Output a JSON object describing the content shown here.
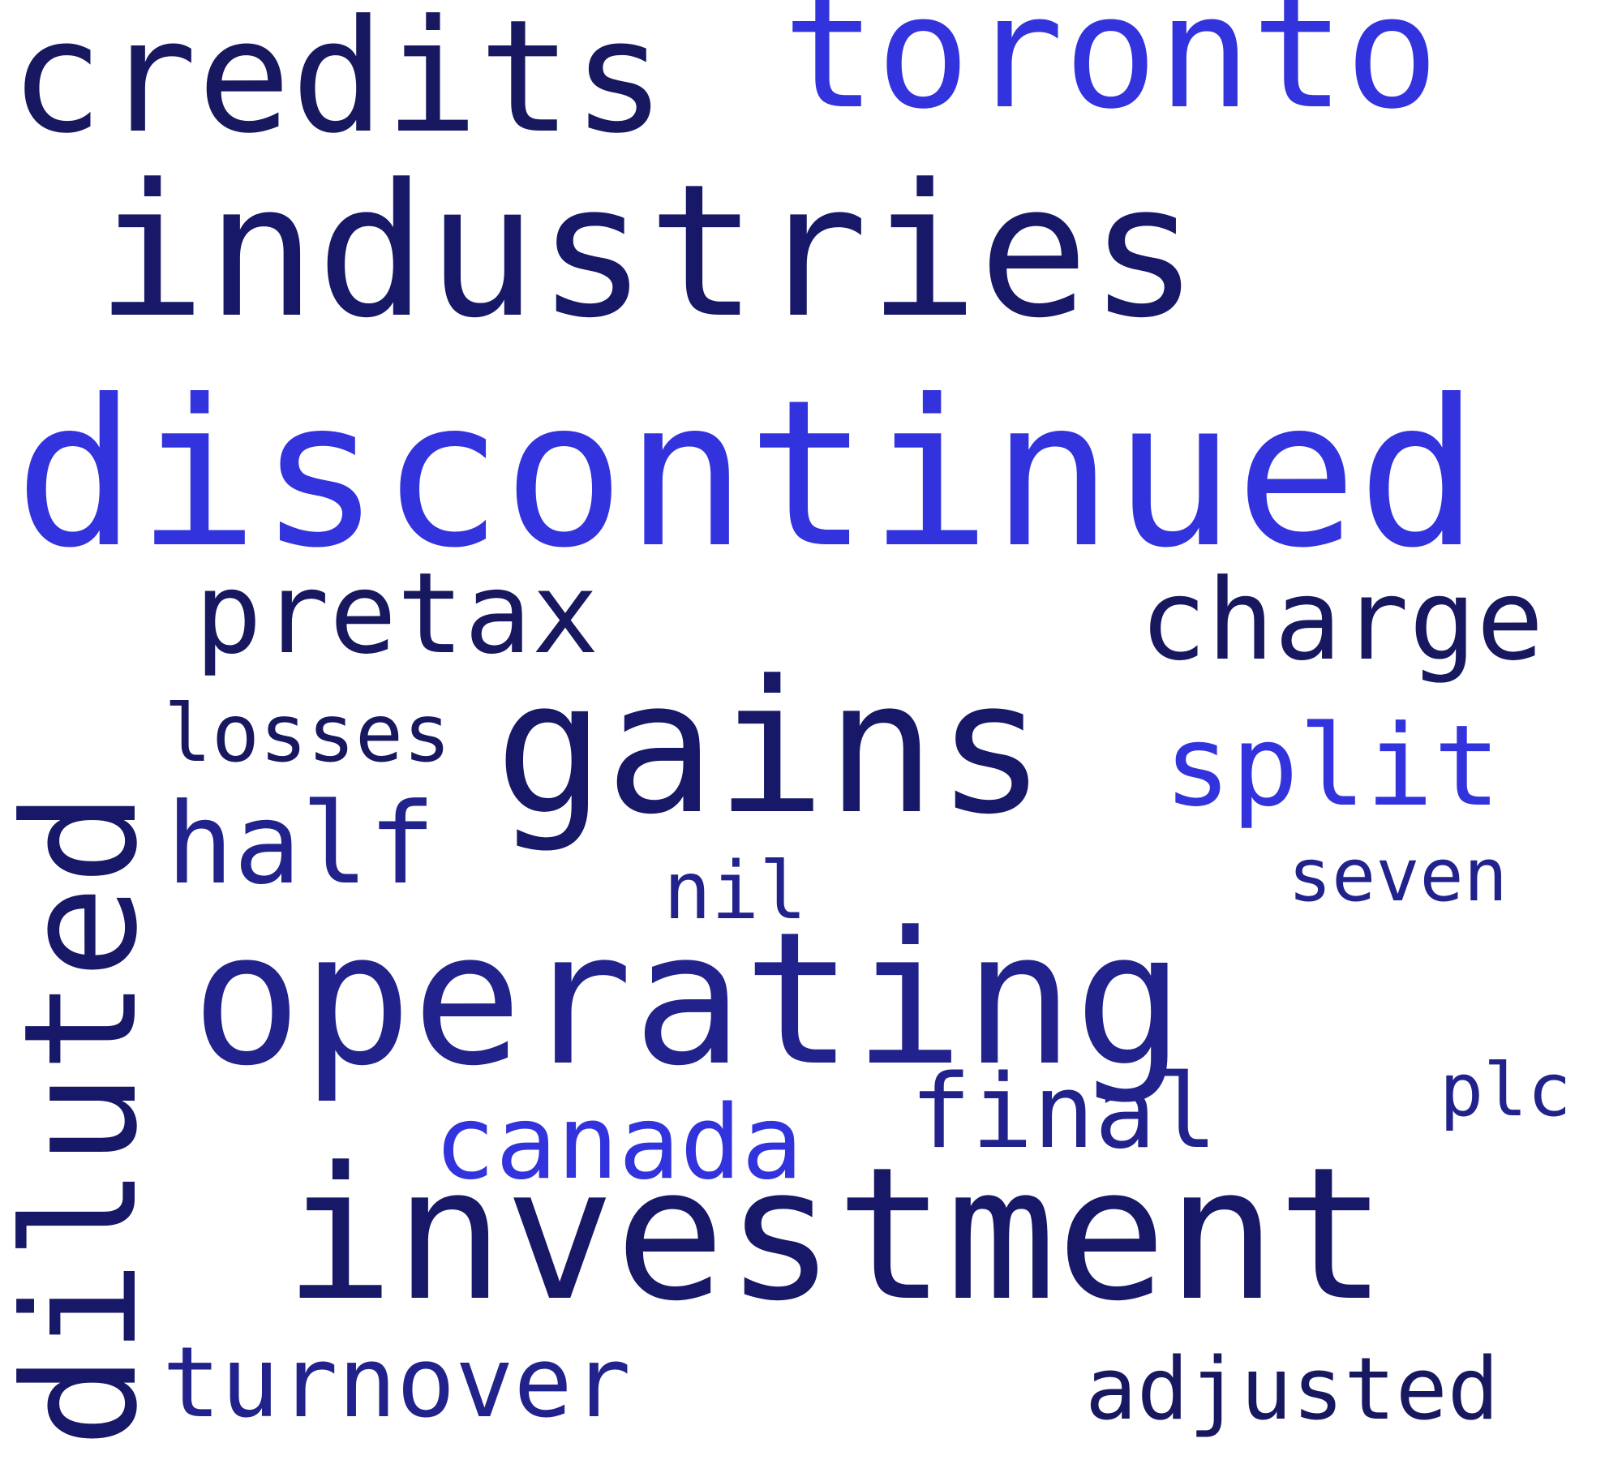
{
  "words": {
    "discontinued": {
      "text": "discontinued",
      "color": "#3333dd"
    },
    "industries": {
      "text": "industries",
      "color": "#181868"
    },
    "operating": {
      "text": "operating",
      "color": "#22228c"
    },
    "investment": {
      "text": "investment",
      "color": "#181868"
    },
    "gains": {
      "text": "gains",
      "color": "#181868"
    },
    "credits": {
      "text": "credits",
      "color": "#181860"
    },
    "toronto": {
      "text": "toronto",
      "color": "#3333dd"
    },
    "diluted": {
      "text": "diluted",
      "color": "#181868"
    },
    "pretax": {
      "text": "pretax",
      "color": "#181860"
    },
    "charge": {
      "text": "charge",
      "color": "#181860"
    },
    "split": {
      "text": "split",
      "color": "#3333dd"
    },
    "half": {
      "text": "half",
      "color": "#22228c"
    },
    "canada": {
      "text": "canada",
      "color": "#3333dd"
    },
    "final": {
      "text": "final",
      "color": "#22228c"
    },
    "turnover": {
      "text": "turnover",
      "color": "#22228c"
    },
    "adjusted": {
      "text": "adjusted",
      "color": "#181860"
    },
    "losses": {
      "text": "losses",
      "color": "#181860"
    },
    "nil": {
      "text": "nil",
      "color": "#22228c"
    },
    "seven": {
      "text": "seven",
      "color": "#22228c"
    },
    "plc": {
      "text": "plc",
      "color": "#22228c"
    }
  }
}
